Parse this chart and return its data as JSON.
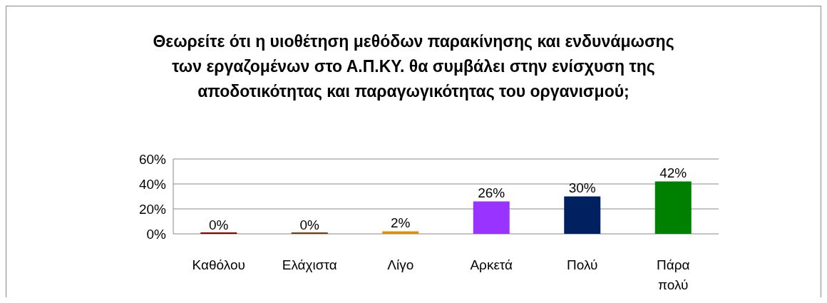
{
  "chart_data": {
    "type": "bar",
    "title": "Θεωρείτε ότι η υιοθέτηση μεθόδων παρακίνησης και ενδυνάμωσης των εργαζομένων στο Α.Π.ΚΥ. θα συμβάλει στην ενίσχυση της αποδοτικότητας και παραγωγικότητας του οργανισμού;",
    "categories": [
      "Καθόλου",
      "Ελάχιστα",
      "Λίγο",
      "Αρκετά",
      "Πολύ",
      "Πάρα πολύ"
    ],
    "values": [
      0,
      0,
      2,
      26,
      30,
      42
    ],
    "colors": [
      "#8b0000",
      "#7a3b0c",
      "#e08e00",
      "#9933ff",
      "#002060",
      "#008000"
    ],
    "value_labels": [
      "0%",
      "0%",
      "2%",
      "26%",
      "30%",
      "42%"
    ],
    "ylim": [
      0,
      60
    ],
    "yticks": [
      {
        "value": 0,
        "label": "0%"
      },
      {
        "value": 20,
        "label": "20%"
      },
      {
        "value": 40,
        "label": "40%"
      },
      {
        "value": 60,
        "label": "60%"
      }
    ],
    "grid": true
  }
}
